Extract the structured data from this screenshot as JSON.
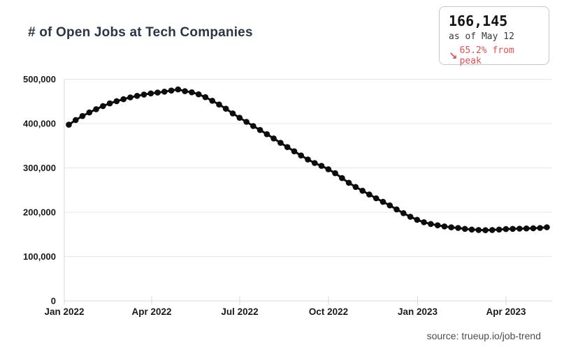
{
  "header": {
    "title": "# of Open Jobs at Tech Companies"
  },
  "stat_box": {
    "value": "166,145",
    "as_of": "as of May 12",
    "delta_arrow": "↘",
    "delta_text": "65.2% from peak",
    "delta_color": "#dd5151"
  },
  "footer": {
    "source": "source: trueup.io/job-trend"
  },
  "colors": {
    "series": "#0d0d0d",
    "grid": "#e7e7e7",
    "axis": "#d9d9d9",
    "tick_label": "#1a1a1a",
    "title": "#2a3546",
    "stat_delta": "#dd5151"
  },
  "chart_data": {
    "type": "line",
    "title": "# of Open Jobs at Tech Companies",
    "xlabel": "",
    "ylabel": "",
    "ylim": [
      0,
      500000
    ],
    "grid": true,
    "legend": false,
    "marker": "circle",
    "x_tick_labels": [
      "Jan 2022",
      "Apr 2022",
      "Jul 2022",
      "Oct 2022",
      "Jan 2023",
      "Apr 2023"
    ],
    "y_tick_values": [
      0,
      100000,
      200000,
      300000,
      400000,
      500000
    ],
    "y_tick_labels": [
      "0",
      "100,000",
      "200,000",
      "300,000",
      "400,000",
      "500,000"
    ],
    "x_description": "weekly data points, Jan 2022 through May 12 2023",
    "series": [
      {
        "name": "Open jobs at tech companies",
        "color": "#0d0d0d",
        "values": [
          397500,
          408000,
          417000,
          425000,
          432500,
          439500,
          445500,
          450500,
          455000,
          459000,
          462500,
          465500,
          468000,
          470000,
          472000,
          474500,
          477000,
          473000,
          470500,
          466000,
          459500,
          451500,
          443000,
          433500,
          423000,
          413000,
          404000,
          394500,
          385500,
          376000,
          366500,
          356500,
          347000,
          337500,
          328000,
          319000,
          311000,
          304500,
          297000,
          288000,
          277000,
          266500,
          257000,
          248500,
          240000,
          231500,
          223500,
          215500,
          206500,
          198000,
          190000,
          183000,
          177500,
          173500,
          170500,
          168000,
          166000,
          164500,
          162500,
          161000,
          160000,
          159500,
          160000,
          161000,
          162000,
          162500,
          163000,
          163500,
          164000,
          164500,
          166145
        ]
      }
    ],
    "annotations": {
      "current_value": "166,145",
      "current_as_of": "as of May 12",
      "change_from_peak": "65.2% from peak"
    }
  }
}
